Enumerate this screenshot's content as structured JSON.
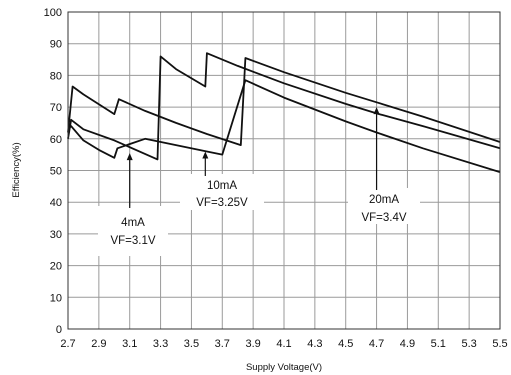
{
  "chart_data": {
    "type": "line",
    "xlabel": "Supply Voltage(V)",
    "ylabel": "Efficiency(%)",
    "xlim": [
      2.7,
      5.5
    ],
    "ylim": [
      0,
      100
    ],
    "xticks": [
      "2.7",
      "2.9",
      "3.1",
      "3.3",
      "3.5",
      "3.7",
      "3.9",
      "4.1",
      "4.3",
      "4.5",
      "4.7",
      "4.9",
      "5.1",
      "5.3",
      "5.5"
    ],
    "yticks": [
      "0",
      "10",
      "20",
      "30",
      "40",
      "50",
      "60",
      "70",
      "80",
      "90",
      "100"
    ],
    "grid": true,
    "series": [
      {
        "x": [
          2.7,
          2.73,
          2.8,
          3.0,
          3.03,
          3.2,
          3.4,
          3.6,
          3.82,
          3.85,
          4.1,
          4.5,
          4.7,
          5.0,
          5.5
        ],
        "y": [
          62,
          76.5,
          74,
          67.8,
          72.5,
          68.8,
          65,
          61.5,
          58,
          85.5,
          81,
          74.5,
          71.5,
          67,
          59
        ]
      },
      {
        "x": [
          2.7,
          2.72,
          2.8,
          3.0,
          3.28,
          3.3,
          3.4,
          3.59,
          3.6,
          3.8,
          4.1,
          4.5,
          4.7,
          5.0,
          5.5
        ],
        "y": [
          60,
          66,
          63,
          59.5,
          53.5,
          86,
          82,
          76.5,
          87,
          83,
          77.5,
          71,
          68,
          64,
          57
        ]
      },
      {
        "x": [
          2.7,
          2.72,
          2.8,
          2.9,
          3.0,
          3.02,
          3.2,
          3.4,
          3.6,
          3.7,
          3.85,
          4.1,
          4.5,
          4.7,
          5.0,
          5.5
        ],
        "y": [
          63,
          64,
          59.5,
          56.5,
          54,
          57,
          60,
          58,
          56,
          55,
          78.5,
          73,
          65.5,
          62,
          57,
          49.5
        ]
      }
    ],
    "annotations": [
      {
        "lines": [
          "4mA",
          "VF=3.1V"
        ],
        "x": 3.1,
        "y": 55.5
      },
      {
        "lines": [
          "10mA",
          "VF=3.25V"
        ],
        "x": 3.59,
        "y": 56
      },
      {
        "lines": [
          "20mA",
          "VF=3.4V"
        ],
        "x": 4.7,
        "y": 70
      }
    ]
  }
}
